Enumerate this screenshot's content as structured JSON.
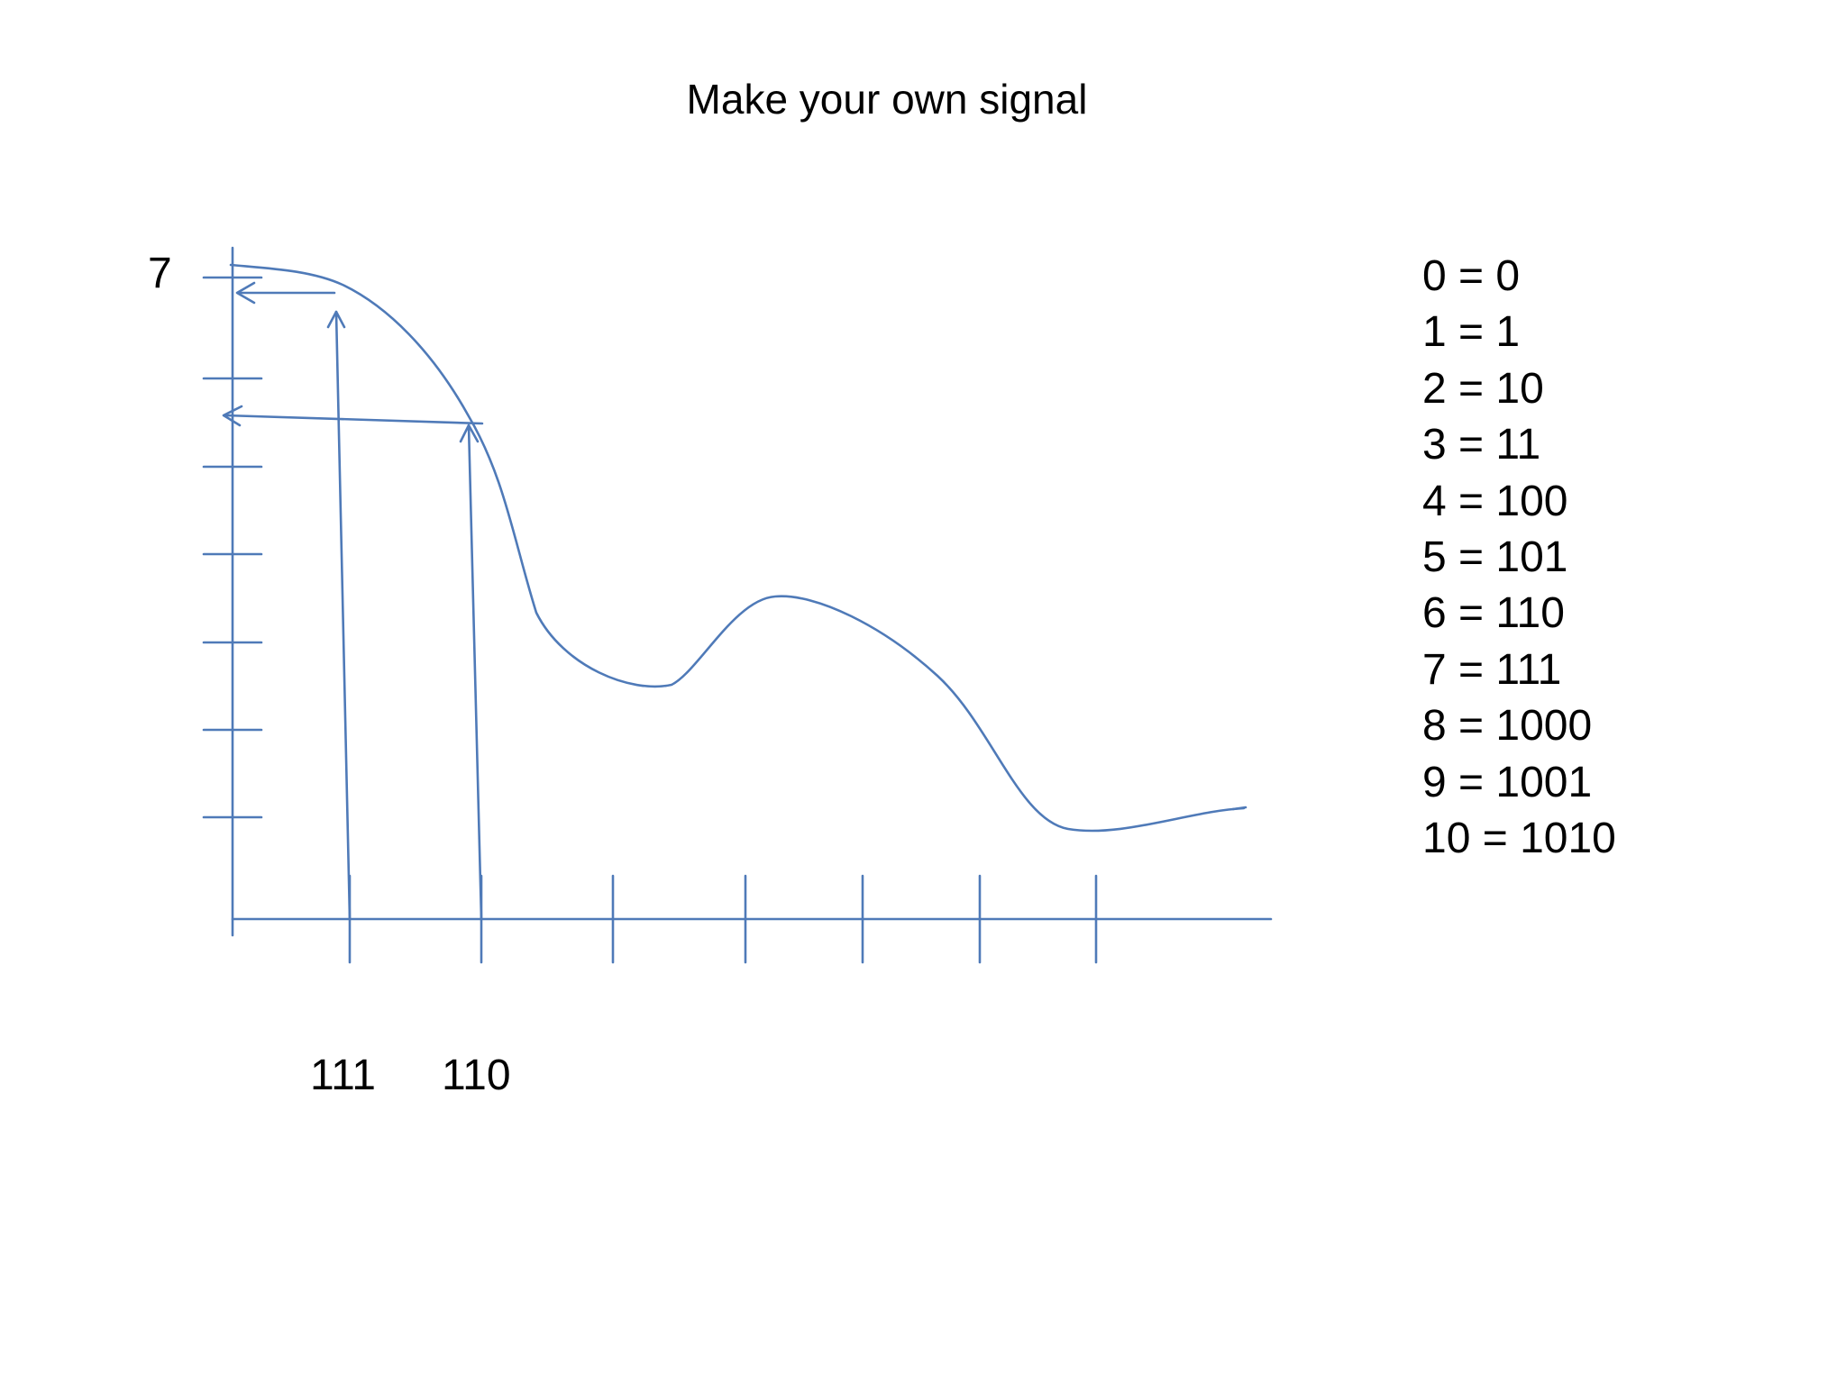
{
  "title": "Make your own signal",
  "y_axis_label": "7",
  "x_axis_labels": [
    "111",
    "110"
  ],
  "line_color": "#4f7ab8",
  "binary_table": [
    {
      "decimal": "0",
      "binary": "0"
    },
    {
      "decimal": "1",
      "binary": "1"
    },
    {
      "decimal": "2",
      "binary": "10"
    },
    {
      "decimal": "3",
      "binary": "11"
    },
    {
      "decimal": "4",
      "binary": "100"
    },
    {
      "decimal": "5",
      "binary": "101"
    },
    {
      "decimal": "6",
      "binary": "110"
    },
    {
      "decimal": "7",
      "binary": "111"
    },
    {
      "decimal": "8",
      "binary": "1000"
    },
    {
      "decimal": "9",
      "binary": "1001"
    },
    {
      "decimal": "10",
      "binary": "1010"
    }
  ]
}
